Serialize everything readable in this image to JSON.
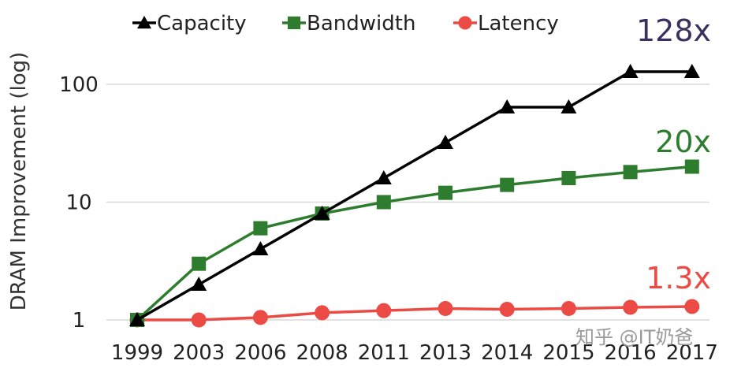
{
  "chart_data": {
    "type": "line",
    "yscale": "log",
    "title": "",
    "xlabel": "",
    "ylabel": "DRAM Improvement (log)",
    "categories": [
      "1999",
      "2003",
      "2006",
      "2008",
      "2011",
      "2013",
      "2014",
      "2015",
      "2016",
      "2017"
    ],
    "ylim": [
      1,
      128
    ],
    "yticks": [
      1,
      10,
      100
    ],
    "ytick_labels": [
      "1",
      "10",
      "100"
    ],
    "grid": "horizontal",
    "legend_position": "top",
    "series": [
      {
        "name": "Capacity",
        "marker": "triangle",
        "color": "#000000",
        "values": [
          1,
          2,
          4,
          8,
          16,
          32,
          64,
          64,
          128,
          128
        ]
      },
      {
        "name": "Bandwidth",
        "marker": "square",
        "color": "#2e7d2e",
        "values": [
          1,
          3,
          6,
          8,
          10,
          12,
          14,
          16,
          18,
          20
        ]
      },
      {
        "name": "Latency",
        "marker": "circle",
        "color": "#ec4b45",
        "values": [
          1,
          1,
          1.05,
          1.15,
          1.2,
          1.25,
          1.23,
          1.25,
          1.28,
          1.3
        ]
      }
    ],
    "annotations": [
      {
        "text": "128x",
        "series": "Capacity",
        "color": "#3a2f5e"
      },
      {
        "text": "20x",
        "series": "Bandwidth",
        "color": "#2e7d2e"
      },
      {
        "text": "1.3x",
        "series": "Latency",
        "color": "#ec4b45"
      }
    ]
  },
  "watermark": "知乎 @IT奶爸"
}
